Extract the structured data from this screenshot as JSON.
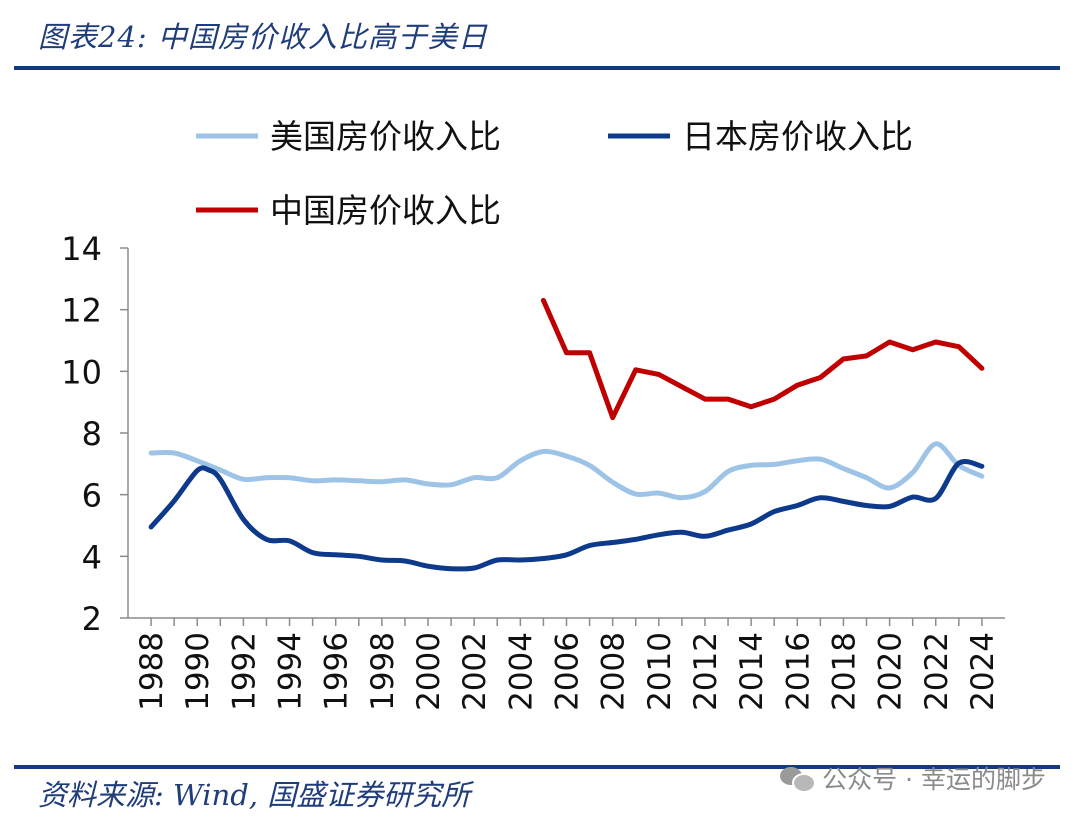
{
  "figure_title": "图表24:  中国房价收入比高于美日",
  "source_text": "资料来源:  Wind, 国盛证券研究所",
  "watermark_text": "公众号 · 幸运的脚步",
  "chart_data": {
    "type": "line",
    "ylim": [
      2,
      14
    ],
    "yticks": [
      "2",
      "4",
      "6",
      "8",
      "10",
      "12",
      "14"
    ],
    "xticks": [
      "1988",
      "1990",
      "1992",
      "1994",
      "1996",
      "1998",
      "2000",
      "2002",
      "2004",
      "2006",
      "2008",
      "2010",
      "2012",
      "2014",
      "2016",
      "2018",
      "2020",
      "2022",
      "2024"
    ],
    "legend_position": "top",
    "series": [
      {
        "name": "美国房价收入比",
        "color": "#9dc3e6",
        "x": [
          1988,
          1989,
          1990,
          1991,
          1992,
          1993,
          1994,
          1995,
          1996,
          1997,
          1998,
          1999,
          2000,
          2001,
          2002,
          2003,
          2004,
          2005,
          2006,
          2007,
          2008,
          2009,
          2010,
          2011,
          2012,
          2013,
          2014,
          2015,
          2016,
          2017,
          2018,
          2019,
          2020,
          2021,
          2022,
          2023,
          2024
        ],
        "values": [
          7.35,
          7.35,
          7.1,
          6.8,
          6.5,
          6.55,
          6.55,
          6.45,
          6.48,
          6.45,
          6.42,
          6.48,
          6.35,
          6.32,
          6.55,
          6.55,
          7.1,
          7.4,
          7.25,
          6.95,
          6.4,
          6.02,
          6.05,
          5.9,
          6.1,
          6.75,
          6.95,
          6.98,
          7.1,
          7.15,
          6.85,
          6.55,
          6.22,
          6.72,
          7.65,
          6.95,
          6.6
        ]
      },
      {
        "name": "日本房价收入比",
        "color": "#0e3a8c",
        "x": [
          1988,
          1989,
          1990,
          1990.5,
          1991,
          1992,
          1993,
          1994,
          1995,
          1996,
          1997,
          1998,
          1999,
          2000,
          2001,
          2002,
          2003,
          2004,
          2005,
          2006,
          2007,
          2008,
          2009,
          2010,
          2011,
          2012,
          2013,
          2014,
          2015,
          2016,
          2017,
          2018,
          2019,
          2020,
          2021,
          2022,
          2023,
          2024
        ],
        "values": [
          4.95,
          5.8,
          6.78,
          6.8,
          6.5,
          5.2,
          4.55,
          4.5,
          4.12,
          4.05,
          4.0,
          3.88,
          3.85,
          3.68,
          3.6,
          3.62,
          3.88,
          3.88,
          3.93,
          4.05,
          4.35,
          4.45,
          4.55,
          4.7,
          4.78,
          4.65,
          4.85,
          5.05,
          5.45,
          5.65,
          5.9,
          5.78,
          5.65,
          5.62,
          5.92,
          5.88,
          7.02,
          6.92
        ]
      },
      {
        "name": "中国房价收入比",
        "color": "#c00000",
        "x": [
          2005,
          2006,
          2007,
          2008,
          2009,
          2010,
          2011,
          2012,
          2013,
          2014,
          2015,
          2016,
          2017,
          2018,
          2019,
          2020,
          2021,
          2022,
          2023,
          2024
        ],
        "values": [
          12.3,
          10.6,
          10.6,
          8.5,
          10.05,
          9.9,
          9.5,
          9.1,
          9.1,
          8.85,
          9.1,
          9.55,
          9.8,
          10.4,
          10.5,
          10.95,
          10.7,
          10.95,
          10.8,
          10.1
        ]
      }
    ]
  }
}
